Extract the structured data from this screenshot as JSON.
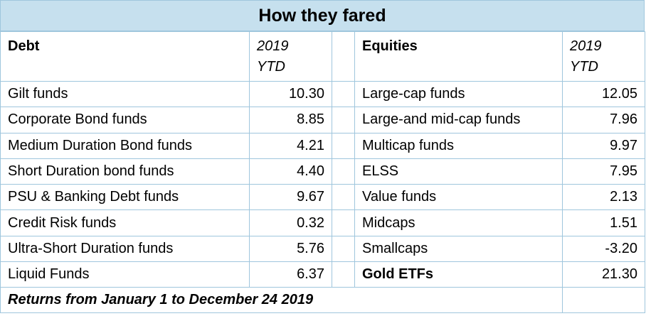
{
  "title": "How they fared",
  "headers": {
    "debt": "Debt",
    "debt_period_line1": "2019",
    "debt_period_line2": "YTD",
    "equities": "Equities",
    "eq_period_line1": "2019",
    "eq_period_line2": "YTD"
  },
  "rows": [
    {
      "debt_name": "Gilt funds",
      "debt_value": "10.30",
      "eq_name": "Large-cap funds",
      "eq_value": "12.05"
    },
    {
      "debt_name": "Corporate Bond funds",
      "debt_value": "8.85",
      "eq_name": "Large-and mid-cap funds",
      "eq_value": "7.96"
    },
    {
      "debt_name": "Medium Duration Bond funds",
      "debt_value": "4.21",
      "eq_name": "Multicap funds",
      "eq_value": "9.97"
    },
    {
      "debt_name": "Short Duration bond funds",
      "debt_value": "4.40",
      "eq_name": "ELSS",
      "eq_value": "7.95"
    },
    {
      "debt_name": "PSU & Banking Debt funds",
      "debt_value": "9.67",
      "eq_name": "Value funds",
      "eq_value": "2.13"
    },
    {
      "debt_name": "Credit Risk funds",
      "debt_value": "0.32",
      "eq_name": "Midcaps",
      "eq_value": "1.51"
    },
    {
      "debt_name": "Ultra-Short Duration funds",
      "debt_value": "5.76",
      "eq_name": "Smallcaps",
      "eq_value": "-3.20"
    },
    {
      "debt_name": "Liquid Funds",
      "debt_value": "6.37",
      "eq_name": "Gold ETFs",
      "eq_value": "21.30"
    }
  ],
  "footnote": "Returns from January 1 to December 24 2019"
}
